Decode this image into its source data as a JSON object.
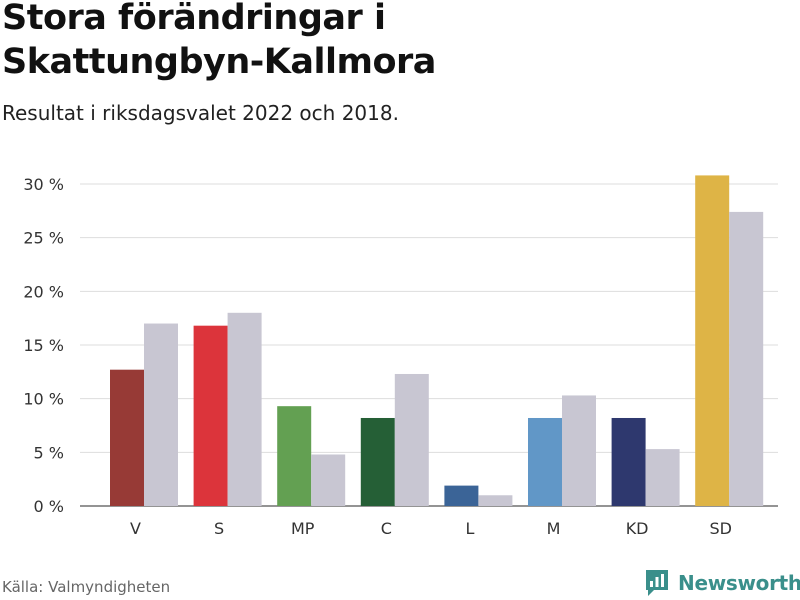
{
  "header": {
    "title": "Stora förändringar i Skattungbyn-Kallmora",
    "subtitle": "Resultat i riksdagsvalet 2022 och 2018."
  },
  "footer": {
    "source": "Källa: Valmyndigheten",
    "brand": "Newsworthy",
    "brand_icon": "bar-chart-logo-icon",
    "brand_color": "#3a8f8b"
  },
  "chart_data": {
    "type": "bar",
    "categories": [
      "V",
      "S",
      "MP",
      "C",
      "L",
      "M",
      "KD",
      "SD"
    ],
    "series": [
      {
        "values": [
          12.7,
          16.8,
          9.3,
          8.2,
          1.9,
          8.2,
          8.2,
          30.8
        ],
        "colors": [
          "#973a36",
          "#dc343b",
          "#63a052",
          "#255f36",
          "#3b6497",
          "#6197c7",
          "#2e386e",
          "#deb446"
        ]
      },
      {
        "values": [
          17.0,
          18.0,
          4.8,
          12.3,
          1.0,
          10.3,
          5.3,
          27.4
        ],
        "color": "#c8c6d2"
      }
    ],
    "yticks": [
      "0 %",
      "5 %",
      "10 %",
      "15 %",
      "20 %",
      "25 %",
      "30 %"
    ],
    "ytick_values": [
      0,
      5,
      10,
      15,
      20,
      25,
      30
    ],
    "ylim": [
      0,
      32
    ],
    "grid": true,
    "legend": "none"
  }
}
